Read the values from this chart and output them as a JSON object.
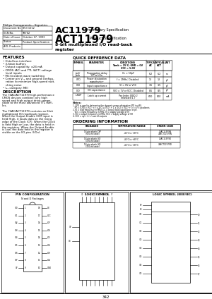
{
  "bg_color": "#ffffff",
  "title_company": "Philips Components—Signetics",
  "doc_no": "853 1012",
  "ecn_no": "98702",
  "date": "October 17, 1993",
  "status": "Product Specification",
  "aol": "AOL Products",
  "chip_name1": "AC11979",
  "chip_sub1": ": Preliminary Specification",
  "chip_name2": "ACT11979",
  "chip_sub2": ": Product Specification",
  "features_title": "FEATURES",
  "desc_title": "DESCRIPTION",
  "qrd_title": "QUICK REFERENCE DATA",
  "ordering_title": "ORDERING INFORMATION",
  "pin_title": "PIN CONFIGURATION",
  "pin_subtitle": "N and D Packages",
  "logic_title": "LOGIC SYMBOL",
  "logic_iee_title": "LOGIC SYMBOL (IEEE/IEC)",
  "page_num": "342"
}
